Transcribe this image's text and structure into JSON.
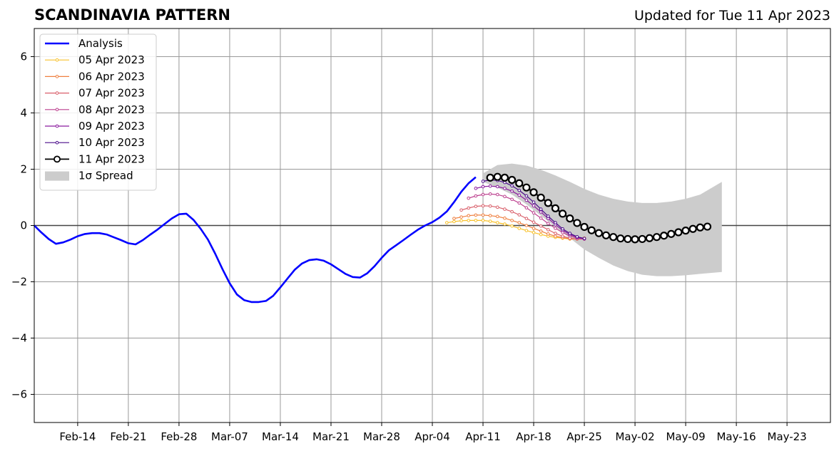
{
  "chart_data": {
    "type": "line",
    "title": "SCANDINAVIA PATTERN",
    "subtitle": "Updated for Tue 11 Apr 2023",
    "xlabel": "",
    "ylabel": "",
    "xlim": [
      "2023-02-08",
      "2023-05-29"
    ],
    "ylim": [
      -7,
      7
    ],
    "x_ticks": [
      {
        "date": "2023-02-14",
        "label": "Feb-14"
      },
      {
        "date": "2023-02-21",
        "label": "Feb-21"
      },
      {
        "date": "2023-02-28",
        "label": "Feb-28"
      },
      {
        "date": "2023-03-07",
        "label": "Mar-07"
      },
      {
        "date": "2023-03-14",
        "label": "Mar-14"
      },
      {
        "date": "2023-03-21",
        "label": "Mar-21"
      },
      {
        "date": "2023-03-28",
        "label": "Mar-28"
      },
      {
        "date": "2023-04-04",
        "label": "Apr-04"
      },
      {
        "date": "2023-04-11",
        "label": "Apr-11"
      },
      {
        "date": "2023-04-18",
        "label": "Apr-18"
      },
      {
        "date": "2023-04-25",
        "label": "Apr-25"
      },
      {
        "date": "2023-05-02",
        "label": "May-02"
      },
      {
        "date": "2023-05-09",
        "label": "May-09"
      },
      {
        "date": "2023-05-16",
        "label": "May-16"
      },
      {
        "date": "2023-05-23",
        "label": "May-23"
      }
    ],
    "y_ticks": [
      {
        "value": -6,
        "label": "−6"
      },
      {
        "value": -4,
        "label": "−4"
      },
      {
        "value": -2,
        "label": "−2"
      },
      {
        "value": 0,
        "label": "0"
      },
      {
        "value": 2,
        "label": "2"
      },
      {
        "value": 4,
        "label": "4"
      },
      {
        "value": 6,
        "label": "6"
      }
    ],
    "grid": true,
    "zero_line": true,
    "legend_position": "top-left",
    "analysis": {
      "name": "Analysis",
      "color": "#0000ff",
      "x_start": "2023-02-08",
      "values": [
        0.0,
        -0.25,
        -0.48,
        -0.65,
        -0.6,
        -0.5,
        -0.38,
        -0.3,
        -0.27,
        -0.27,
        -0.32,
        -0.42,
        -0.52,
        -0.63,
        -0.67,
        -0.52,
        -0.33,
        -0.15,
        0.05,
        0.25,
        0.4,
        0.42,
        0.2,
        -0.12,
        -0.5,
        -1.0,
        -1.55,
        -2.05,
        -2.45,
        -2.65,
        -2.72,
        -2.72,
        -2.68,
        -2.5,
        -2.2,
        -1.88,
        -1.57,
        -1.35,
        -1.23,
        -1.2,
        -1.25,
        -1.38,
        -1.55,
        -1.72,
        -1.83,
        -1.85,
        -1.7,
        -1.45,
        -1.15,
        -0.88,
        -0.7,
        -0.52,
        -0.33,
        -0.15,
        0.0,
        0.12,
        0.28,
        0.5,
        0.83,
        1.2,
        1.5,
        1.72
      ]
    },
    "forecasts": [
      {
        "name": "05 Apr 2023",
        "color": "#f8c12a",
        "x_start": "2023-04-06",
        "values": [
          0.1,
          0.14,
          0.17,
          0.18,
          0.18,
          0.18,
          0.15,
          0.1,
          0.05,
          -0.02,
          -0.1,
          -0.18,
          -0.25,
          -0.32,
          -0.38,
          -0.42,
          -0.45,
          -0.48,
          -0.48,
          -0.45
        ]
      },
      {
        "name": "06 Apr 2023",
        "color": "#ef8040",
        "x_start": "2023-04-07",
        "values": [
          0.25,
          0.3,
          0.35,
          0.37,
          0.37,
          0.35,
          0.32,
          0.26,
          0.18,
          0.1,
          0.0,
          -0.1,
          -0.2,
          -0.3,
          -0.38,
          -0.43,
          -0.47,
          -0.48,
          -0.45
        ]
      },
      {
        "name": "07 Apr 2023",
        "color": "#d95f6a",
        "x_start": "2023-04-08",
        "values": [
          0.55,
          0.62,
          0.68,
          0.7,
          0.69,
          0.65,
          0.58,
          0.49,
          0.38,
          0.25,
          0.12,
          -0.02,
          -0.15,
          -0.28,
          -0.38,
          -0.45,
          -0.48,
          -0.48
        ]
      },
      {
        "name": "08 Apr 2023",
        "color": "#bc3f8e",
        "x_start": "2023-04-09",
        "values": [
          0.97,
          1.05,
          1.1,
          1.12,
          1.1,
          1.03,
          0.93,
          0.8,
          0.63,
          0.45,
          0.26,
          0.07,
          -0.1,
          -0.25,
          -0.37,
          -0.45,
          -0.48
        ]
      },
      {
        "name": "09 Apr 2023",
        "color": "#8b1a9e",
        "x_start": "2023-04-10",
        "values": [
          1.32,
          1.38,
          1.4,
          1.38,
          1.32,
          1.22,
          1.08,
          0.9,
          0.7,
          0.48,
          0.25,
          0.03,
          -0.17,
          -0.32,
          -0.42,
          -0.47
        ]
      },
      {
        "name": "10 Apr 2023",
        "color": "#4a0c8a",
        "x_start": "2023-04-11",
        "values": [
          1.57,
          1.62,
          1.6,
          1.53,
          1.41,
          1.25,
          1.05,
          0.83,
          0.58,
          0.33,
          0.1,
          -0.12,
          -0.28,
          -0.4,
          -0.46
        ]
      },
      {
        "name": "11 Apr 2023",
        "color": "#000000",
        "x_start": "2023-04-12",
        "values": [
          1.7,
          1.73,
          1.7,
          1.62,
          1.5,
          1.35,
          1.18,
          0.99,
          0.8,
          0.61,
          0.42,
          0.25,
          0.09,
          -0.05,
          -0.17,
          -0.27,
          -0.35,
          -0.41,
          -0.46,
          -0.48,
          -0.49,
          -0.48,
          -0.45,
          -0.41,
          -0.36,
          -0.3,
          -0.24,
          -0.18,
          -0.12,
          -0.07,
          -0.04
        ]
      }
    ],
    "spread": {
      "name": "1σ Spread",
      "color": "#cccccc",
      "x_start": "2023-04-11",
      "x_end": "2023-05-14",
      "upper": [
        [
          0,
          1.85
        ],
        [
          2,
          2.15
        ],
        [
          4,
          2.2
        ],
        [
          6,
          2.13
        ],
        [
          8,
          1.98
        ],
        [
          10,
          1.78
        ],
        [
          12,
          1.55
        ],
        [
          14,
          1.3
        ],
        [
          16,
          1.1
        ],
        [
          18,
          0.95
        ],
        [
          20,
          0.85
        ],
        [
          22,
          0.8
        ],
        [
          24,
          0.8
        ],
        [
          26,
          0.85
        ],
        [
          28,
          0.95
        ],
        [
          30,
          1.1
        ],
        [
          33,
          1.55
        ]
      ],
      "lower": [
        [
          0,
          1.55
        ],
        [
          2,
          1.35
        ],
        [
          4,
          1.1
        ],
        [
          6,
          0.75
        ],
        [
          8,
          0.35
        ],
        [
          10,
          -0.05
        ],
        [
          12,
          -0.45
        ],
        [
          14,
          -0.85
        ],
        [
          16,
          -1.15
        ],
        [
          18,
          -1.42
        ],
        [
          20,
          -1.62
        ],
        [
          22,
          -1.75
        ],
        [
          24,
          -1.8
        ],
        [
          26,
          -1.8
        ],
        [
          28,
          -1.77
        ],
        [
          30,
          -1.72
        ],
        [
          33,
          -1.65
        ]
      ]
    }
  }
}
